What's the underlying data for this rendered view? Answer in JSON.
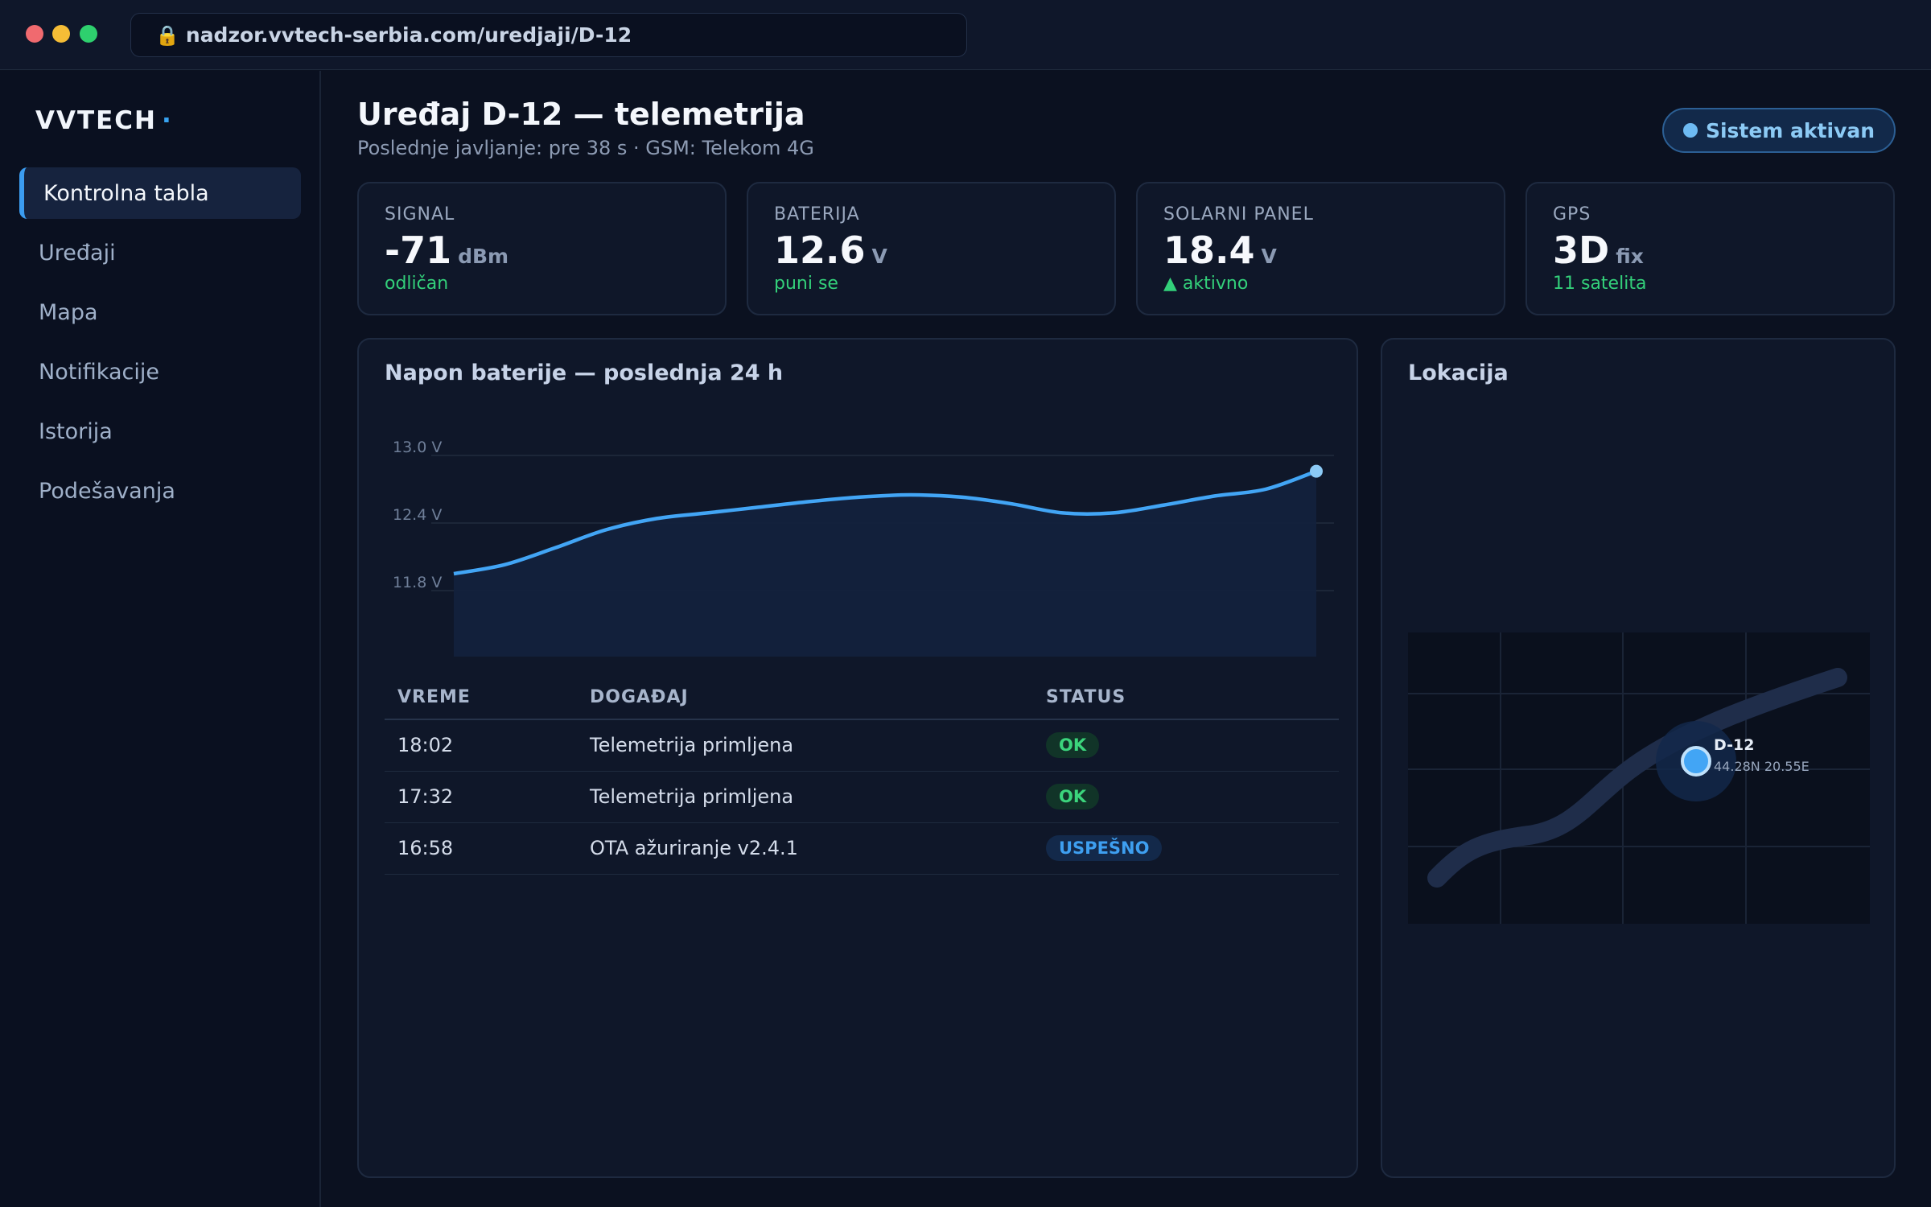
{
  "browser": {
    "url": "nadzor.vvtech-serbia.com/uredjaji/D-12"
  },
  "sidebar": {
    "brand": "VVTECH",
    "brand_mark": "·",
    "items": [
      {
        "label": "Kontrolna tabla",
        "active": true
      },
      {
        "label": "Uređaji",
        "active": false
      },
      {
        "label": "Mapa",
        "active": false
      },
      {
        "label": "Notifikacije",
        "active": false
      },
      {
        "label": "Istorija",
        "active": false
      },
      {
        "label": "Podešavanja",
        "active": false
      }
    ]
  },
  "header": {
    "title": "Uređaj D-12 — telemetrija",
    "subtitle": "Poslednje javljanje: pre 38 s · GSM: Telekom 4G",
    "status": "Sistem aktivan"
  },
  "cards": [
    {
      "label": "SIGNAL",
      "value": "-71",
      "unit": "dBm",
      "note": "odličan"
    },
    {
      "label": "BATERIJA",
      "value": "12.6",
      "unit": "V",
      "note": "puni se"
    },
    {
      "label": "SOLARNI PANEL",
      "value": "18.4",
      "unit": "V",
      "note": "▲ aktivno"
    },
    {
      "label": "GPS",
      "value": "3D",
      "unit": "fix",
      "note": "11 satelita"
    }
  ],
  "chart_panel": {
    "title": "Napon baterije — poslednja 24 h"
  },
  "chart_data": {
    "type": "area",
    "title": "Napon baterije — poslednja 24 h",
    "xlabel": "",
    "ylabel": "",
    "ytick_labels": [
      "13.0 V",
      "12.4 V",
      "11.8 V"
    ],
    "yticks": [
      13.0,
      12.4,
      11.8
    ],
    "ylim": [
      11.2,
      13.0
    ],
    "x": [
      0,
      1,
      2,
      3,
      4,
      5,
      6,
      7,
      8,
      9,
      10,
      11,
      12,
      13,
      14,
      15,
      16,
      17
    ],
    "series": [
      {
        "values": [
          11.95,
          12.03,
          12.18,
          12.34,
          12.44,
          12.49,
          12.54,
          12.59,
          12.63,
          12.65,
          12.63,
          12.57,
          12.49,
          12.49,
          12.56,
          12.64,
          12.7,
          12.86
        ]
      }
    ],
    "grid": true,
    "legend": "none"
  },
  "events": {
    "columns": [
      "VREME",
      "DOGAĐAJ",
      "STATUS"
    ],
    "rows": [
      {
        "time": "18:02",
        "event": "Telemetrija primljena",
        "status": "OK",
        "kind": "ok"
      },
      {
        "time": "17:32",
        "event": "Telemetrija primljena",
        "status": "OK",
        "kind": "ok"
      },
      {
        "time": "16:58",
        "event": "OTA ažuriranje v2.4.1",
        "status": "USPEŠNO",
        "kind": "success"
      }
    ]
  },
  "location": {
    "title": "Lokacija",
    "device": "D-12",
    "coords": "44.28N 20.55E"
  },
  "colors": {
    "accent": "#3b9cf0",
    "line": "#42a5f5",
    "ok": "#3bd47c",
    "background": "#0b1120"
  }
}
